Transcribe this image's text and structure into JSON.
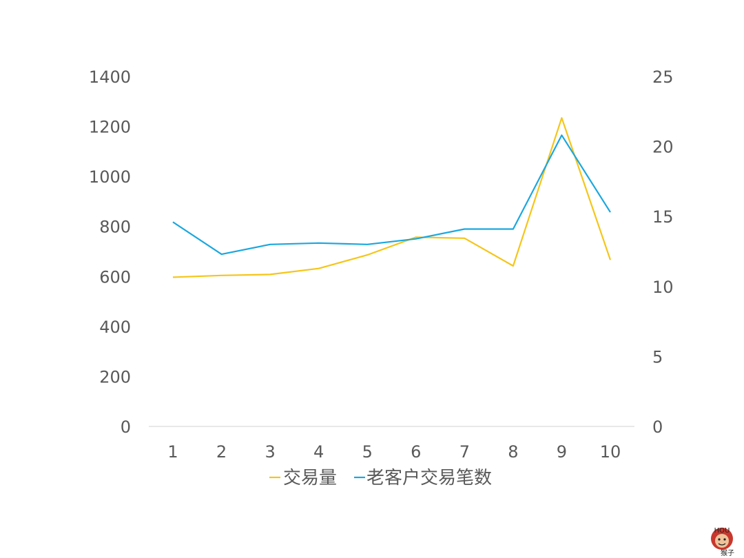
{
  "chart_data": {
    "type": "line",
    "categories": [
      "1",
      "2",
      "3",
      "4",
      "5",
      "6",
      "7",
      "8",
      "9",
      "10"
    ],
    "series": [
      {
        "name": "交易量",
        "axis": "left",
        "color": "#f5c518",
        "values": [
          597,
          604,
          608,
          632,
          686,
          757,
          753,
          642,
          1234,
          666
        ]
      },
      {
        "name": "老客户交易笔数",
        "axis": "right",
        "color": "#1aa7df",
        "values": [
          14.6,
          12.3,
          13.0,
          13.1,
          13.0,
          13.4,
          14.1,
          14.1,
          20.8,
          15.3
        ]
      }
    ],
    "y_left": {
      "min": 0,
      "max": 1400,
      "ticks": [
        "0",
        "200",
        "400",
        "600",
        "800",
        "1000",
        "1200",
        "1400"
      ]
    },
    "y_right": {
      "min": 0,
      "max": 25,
      "ticks": [
        "0",
        "5",
        "10",
        "15",
        "20",
        "25"
      ]
    },
    "grid": false,
    "legend_position": "bottom"
  },
  "logo": {
    "caption": "猴子",
    "badge": "HOU"
  }
}
